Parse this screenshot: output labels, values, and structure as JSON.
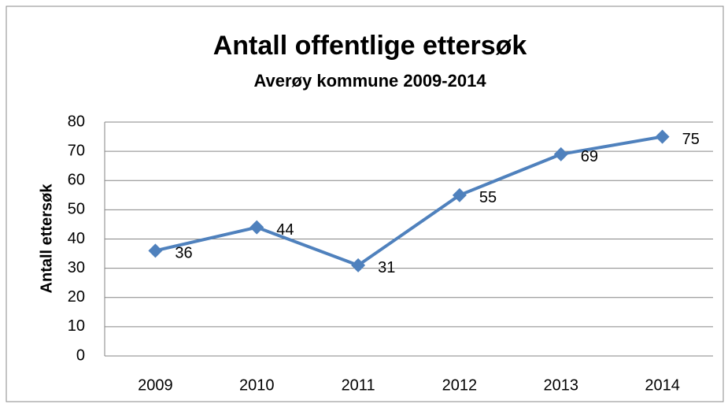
{
  "chart_data": {
    "type": "line",
    "title": "Antall offentlige ettersøk",
    "subtitle": "Averøy kommune 2009-2014",
    "y_label": "Antall ettersøk",
    "categories": [
      "2009",
      "2010",
      "2011",
      "2012",
      "2013",
      "2014"
    ],
    "series": [
      {
        "name": "Antall ettersøk",
        "color": "#4f81bd",
        "values": [
          36,
          44,
          31,
          55,
          69,
          75
        ]
      }
    ],
    "ylim": [
      0,
      80
    ],
    "yticks": [
      0,
      10,
      20,
      30,
      40,
      50,
      60,
      70,
      80
    ],
    "grid": true,
    "data_labels": true
  }
}
